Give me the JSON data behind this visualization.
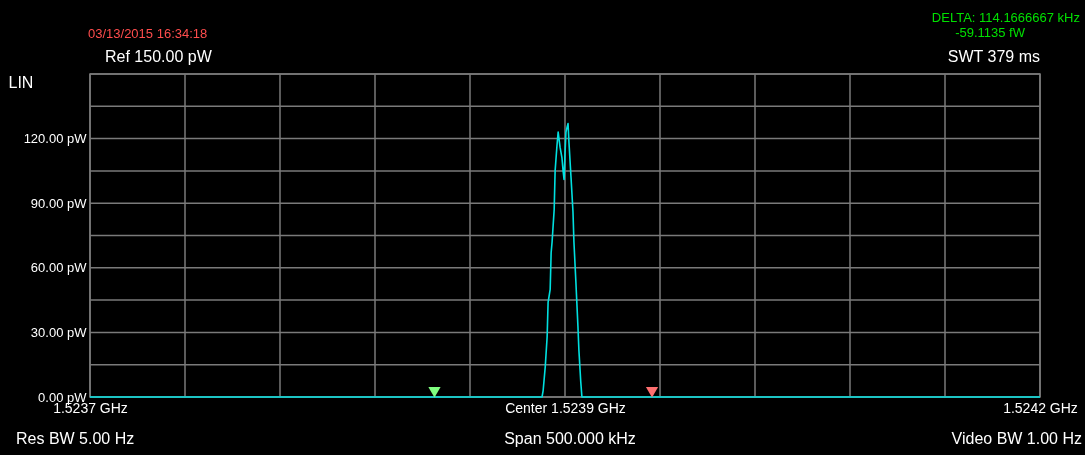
{
  "chart_data": {
    "type": "line",
    "ylabel": "LIN",
    "annotations": [
      "03/13/2015 16:34:18",
      "Ref 150.00 pW",
      "SWT 379 ms",
      "DELTA: 114.1666667 kHz",
      "-59.1135 fW",
      "Res BW 5.00  Hz",
      "Span 500.000 kHz",
      "Video BW 1.00  Hz"
    ],
    "xlim": [
      1.52365,
      1.52415
    ],
    "xticks": [
      {
        "value": 1.52365,
        "label": "1.5237 GHz"
      },
      {
        "value": 1.5237,
        "label": null
      },
      {
        "value": 1.52375,
        "label": null
      },
      {
        "value": 1.5238,
        "label": null
      },
      {
        "value": 1.52385,
        "label": null
      },
      {
        "value": 1.5239,
        "label": "Center 1.5239 GHz"
      },
      {
        "value": 1.52395,
        "label": null
      },
      {
        "value": 1.524,
        "label": null
      },
      {
        "value": 1.52405,
        "label": null
      },
      {
        "value": 1.5241,
        "label": null
      },
      {
        "value": 1.52415,
        "label": "1.5242 GHz"
      }
    ],
    "ylim": [
      0,
      150
    ],
    "yticks": [
      {
        "value": 0,
        "label": "0.00 pW"
      },
      {
        "value": 15,
        "label": null
      },
      {
        "value": 30,
        "label": "30.00 pW"
      },
      {
        "value": 45,
        "label": null
      },
      {
        "value": 60,
        "label": "60.00 pW"
      },
      {
        "value": 75,
        "label": null
      },
      {
        "value": 90,
        "label": "90.00 pW"
      },
      {
        "value": 105,
        "label": null
      },
      {
        "value": 120,
        "label": "120.00 pW"
      },
      {
        "value": 135,
        "label": null
      },
      {
        "value": 150,
        "label": null
      }
    ],
    "grid": true,
    "series": [
      {
        "type": "line",
        "color": "#00e0e0",
        "x": [
          1.52365,
          1.5238879,
          1.5238885,
          1.5238896,
          1.5238906,
          1.5238911,
          1.5238922,
          1.5238927,
          1.5238932,
          1.5238943,
          1.5238948,
          1.5238958,
          1.5238964,
          1.5238974,
          1.5238984,
          1.523899,
          1.5238995,
          1.5239,
          1.5239005,
          1.523901,
          1.5239016,
          1.5239021,
          1.5239031,
          1.5239042,
          1.5239047,
          1.5239057,
          1.5239068,
          1.5239073,
          1.5239083,
          1.5239089,
          1.52415
        ],
        "values": [
          0,
          0,
          3,
          14,
          28,
          44,
          50,
          67,
          72,
          87,
          105,
          117,
          123,
          116,
          111,
          105,
          101,
          113,
          123,
          125,
          127,
          118,
          103,
          86,
          72,
          54,
          33,
          22,
          7,
          0,
          0
        ]
      },
      {
        "type": "scatter",
        "marker": "triangle",
        "color": "#80ff80",
        "x": [
          1.5238313
        ],
        "values": [
          3
        ]
      },
      {
        "type": "scatter",
        "marker": "triangle",
        "color": "#ff7070",
        "x": [
          1.5239458
        ],
        "values": [
          3
        ]
      }
    ]
  }
}
